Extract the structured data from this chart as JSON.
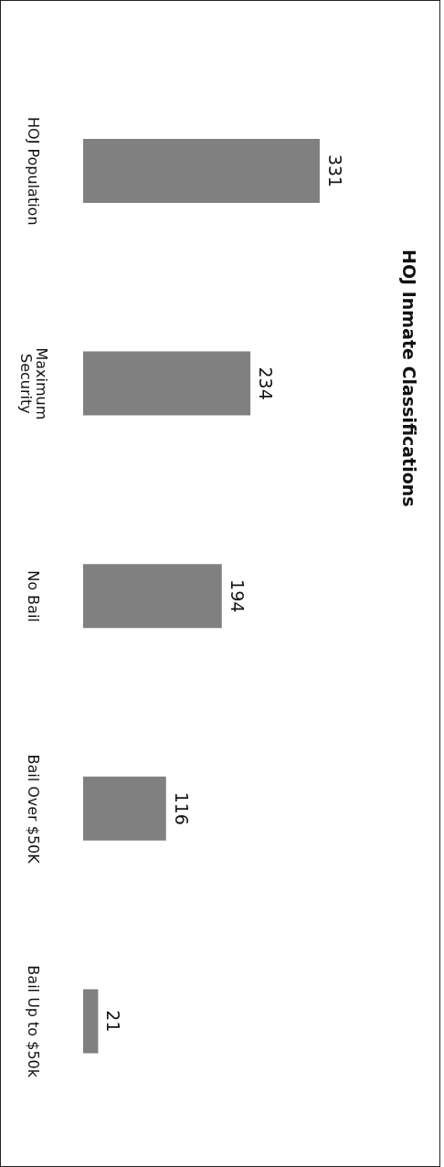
{
  "chart_data": {
    "type": "bar",
    "orientation": "horizontal",
    "title": "HOJ Inmate Classifications",
    "categories": [
      "HOJ Population",
      "Maximum Security",
      "No Bail",
      "Bail Over $50K",
      "Bail Up to $50k"
    ],
    "values": [
      331,
      234,
      194,
      116,
      21
    ],
    "color": "#808080",
    "data_labels": true,
    "grid": false,
    "legend": false
  }
}
